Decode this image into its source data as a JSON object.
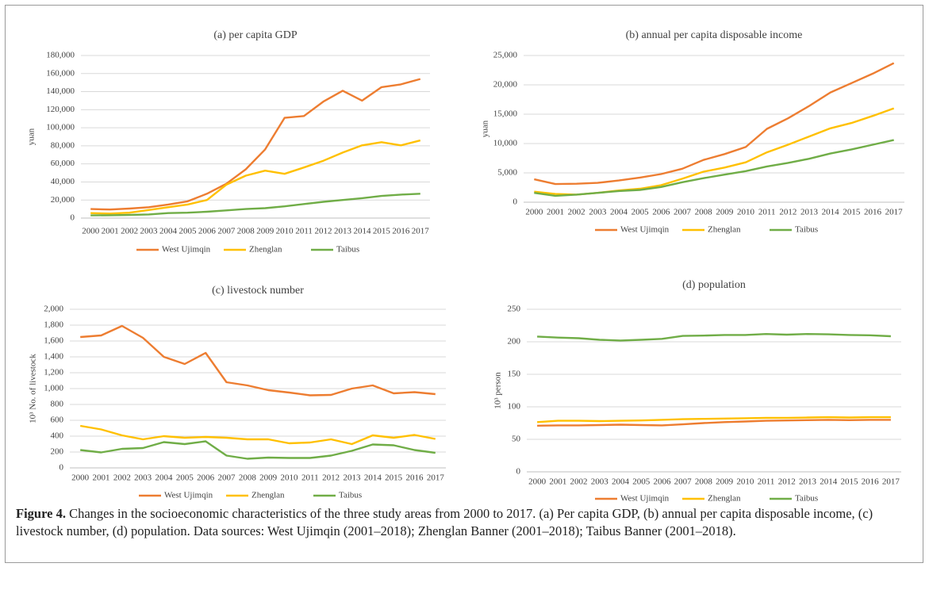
{
  "chart_data": [
    {
      "type": "line",
      "title": "(a) per capita GDP",
      "ylabel": "yuan",
      "categories": [
        "2000",
        "2001",
        "2002",
        "2003",
        "2004",
        "2005",
        "2006",
        "2007",
        "2008",
        "2009",
        "2010",
        "2011",
        "2012",
        "2013",
        "2014",
        "2015",
        "2016",
        "2017"
      ],
      "ylim": [
        0,
        180000
      ],
      "yticks": [
        0,
        {
          "value": 20000,
          "label": "20,000"
        },
        {
          "value": 40000,
          "label": "40,000"
        },
        {
          "value": 60000,
          "label": "60,000"
        },
        {
          "value": 80000,
          "label": "80,000"
        },
        {
          "value": 100000,
          "label": "100,000"
        },
        {
          "value": 120000,
          "label": "120,000"
        },
        {
          "value": 140000,
          "label": "140,000"
        },
        {
          "value": 160000,
          "label": "160,000"
        },
        {
          "value": 180000,
          "label": "180,000"
        }
      ],
      "grid": true,
      "series": [
        {
          "name": "West Ujimqin",
          "color": "#ed7d31",
          "values": [
            10000,
            9500,
            10500,
            12000,
            15000,
            18500,
            27000,
            38000,
            54000,
            76000,
            111000,
            113000,
            129000,
            141000,
            130000,
            145000,
            148000,
            154000
          ]
        },
        {
          "name": "Zhenglan",
          "color": "#ffc000",
          "values": [
            5500,
            5000,
            6000,
            9000,
            12000,
            15000,
            20000,
            37000,
            47000,
            52500,
            49000,
            56000,
            63500,
            72500,
            80500,
            84000,
            80500,
            86000
          ]
        },
        {
          "name": "Taibus",
          "color": "#70ad47",
          "values": [
            3000,
            3200,
            3500,
            4000,
            5500,
            6000,
            7000,
            8500,
            10000,
            11000,
            13000,
            15500,
            18000,
            20000,
            22000,
            24500,
            26000,
            27000
          ]
        }
      ]
    },
    {
      "type": "line",
      "title": "(b) annual per capita disposable income",
      "ylabel": "yuan",
      "categories": [
        "2000",
        "2001",
        "2002",
        "2003",
        "2004",
        "2005",
        "2006",
        "2007",
        "2008",
        "2009",
        "2010",
        "2011",
        "2012",
        "2013",
        "2014",
        "2015",
        "2016",
        "2017"
      ],
      "ylim": [
        0,
        25000
      ],
      "yticks": [
        0,
        {
          "value": 5000,
          "label": "5,000"
        },
        {
          "value": 10000,
          "label": "10,000"
        },
        {
          "value": 15000,
          "label": "15,000"
        },
        {
          "value": 20000,
          "label": "20,000"
        },
        {
          "value": 25000,
          "label": "25,000"
        }
      ],
      "grid": true,
      "series": [
        {
          "name": "West Ujimqin",
          "color": "#ed7d31",
          "values": [
            3900,
            3100,
            3150,
            3300,
            3700,
            4200,
            4800,
            5700,
            7200,
            8200,
            9400,
            12500,
            14300,
            16400,
            18700,
            20300,
            21900,
            23700
          ]
        },
        {
          "name": "Zhenglan",
          "color": "#ffc000",
          "values": [
            1800,
            1400,
            1300,
            1600,
            2000,
            2300,
            2900,
            4000,
            5200,
            5900,
            6800,
            8500,
            9800,
            11200,
            12600,
            13500,
            14700,
            16000
          ]
        },
        {
          "name": "Taibus",
          "color": "#70ad47",
          "values": [
            1600,
            1100,
            1300,
            1600,
            1900,
            2100,
            2600,
            3400,
            4100,
            4700,
            5300,
            6100,
            6700,
            7400,
            8300,
            9000,
            9800,
            10600
          ]
        }
      ]
    },
    {
      "type": "line",
      "title": "(c) livestock number",
      "ylabel": "10³ No. of livestock",
      "categories": [
        "2000",
        "2001",
        "2002",
        "2003",
        "2004",
        "2005",
        "2006",
        "2007",
        "2008",
        "2009",
        "2010",
        "2011",
        "2012",
        "2013",
        "2014",
        "2015",
        "2016",
        "2017"
      ],
      "ylim": [
        0,
        2000
      ],
      "yticks": [
        0,
        200,
        400,
        600,
        800,
        {
          "value": 1000,
          "label": "1,000"
        },
        {
          "value": 1200,
          "label": "1,200"
        },
        {
          "value": 1400,
          "label": "1,400"
        },
        {
          "value": 1600,
          "label": "1,600"
        },
        {
          "value": 1800,
          "label": "1,800"
        },
        {
          "value": 2000,
          "label": "2,000"
        }
      ],
      "grid": true,
      "series": [
        {
          "name": "West Ujimqin",
          "color": "#ed7d31",
          "values": [
            1650,
            1670,
            1790,
            1640,
            1400,
            1310,
            1450,
            1080,
            1040,
            980,
            950,
            915,
            920,
            1000,
            1040,
            940,
            955,
            930
          ]
        },
        {
          "name": "Zhenglan",
          "color": "#ffc000",
          "values": [
            530,
            485,
            410,
            360,
            400,
            380,
            390,
            380,
            360,
            360,
            310,
            320,
            360,
            300,
            410,
            380,
            415,
            365
          ]
        },
        {
          "name": "Taibus",
          "color": "#70ad47",
          "values": [
            225,
            195,
            240,
            250,
            325,
            300,
            335,
            155,
            115,
            130,
            125,
            125,
            155,
            215,
            295,
            285,
            225,
            190
          ]
        }
      ]
    },
    {
      "type": "line",
      "title": "(d) population",
      "ylabel": "10³ person",
      "categories": [
        "2000",
        "2001",
        "2002",
        "2003",
        "2004",
        "2005",
        "2006",
        "2007",
        "2008",
        "2009",
        "2010",
        "2011",
        "2012",
        "2013",
        "2014",
        "2015",
        "2016",
        "2017"
      ],
      "ylim": [
        0,
        250
      ],
      "yticks": [
        0,
        50,
        100,
        150,
        200,
        250
      ],
      "grid": true,
      "series": [
        {
          "name": "West Ujimqin",
          "color": "#ed7d31",
          "values": [
            71,
            71.5,
            71.5,
            72,
            72.5,
            72,
            71.5,
            73,
            75,
            76.5,
            77.5,
            78.5,
            79,
            79.5,
            80,
            79.5,
            80,
            80
          ]
        },
        {
          "name": "Zhenglan",
          "color": "#ffc000",
          "values": [
            76.5,
            78.5,
            78.5,
            78,
            78.5,
            79,
            80,
            81,
            81.5,
            82,
            82.5,
            83,
            83,
            83.5,
            84,
            83.5,
            84,
            84
          ]
        },
        {
          "name": "Taibus",
          "color": "#70ad47",
          "values": [
            208,
            206.5,
            205.5,
            203,
            202,
            203,
            204.5,
            209,
            209.5,
            210.5,
            210.5,
            212,
            211,
            212,
            211.5,
            210.5,
            210,
            208.5
          ]
        }
      ]
    }
  ],
  "caption": {
    "label": "Figure 4.",
    "text": "Changes in the socioeconomic characteristics of the three study areas from 2000 to 2017. (a) Per capita GDP, (b) annual per capita disposable income, (c) livestock number, (d) population. Data sources: West Ujimqin (2001–2018); Zhenglan Banner (2001–2018); Taibus Banner (2001–2018)."
  }
}
